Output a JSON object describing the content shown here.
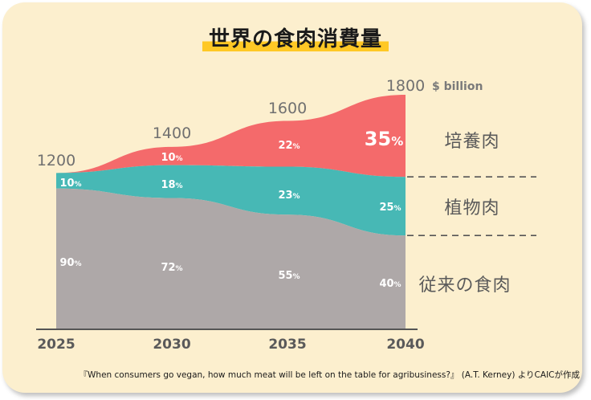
{
  "title": "世界の食肉消費量",
  "source": "『When consumers go vegan, how much meat will be left on the table for agribusiness?』 (A.T. Kerney) よりCAICが作成",
  "chart_data": {
    "type": "area",
    "stacked": true,
    "unit_label": "$ billion",
    "x": [
      "2025",
      "2030",
      "2035",
      "2040"
    ],
    "totals": [
      1200,
      1400,
      1600,
      1800
    ],
    "total_labels": [
      "1200",
      "1400",
      "1600",
      "1800"
    ],
    "series": [
      {
        "name": "従来の食肉",
        "percent": [
          90,
          72,
          55,
          40
        ],
        "labels": [
          "90",
          "72",
          "55",
          "40"
        ],
        "color": "#aea8a8"
      },
      {
        "name": "植物肉",
        "percent": [
          10,
          18,
          23,
          25
        ],
        "labels": [
          "10",
          "18",
          "23",
          "25"
        ],
        "color": "#47b8b5"
      },
      {
        "name": "培養肉",
        "percent": [
          0,
          10,
          22,
          35
        ],
        "labels": [
          "",
          "10",
          "22",
          "35"
        ],
        "color": "#f46a6b"
      }
    ],
    "percent_suffix": "%"
  }
}
